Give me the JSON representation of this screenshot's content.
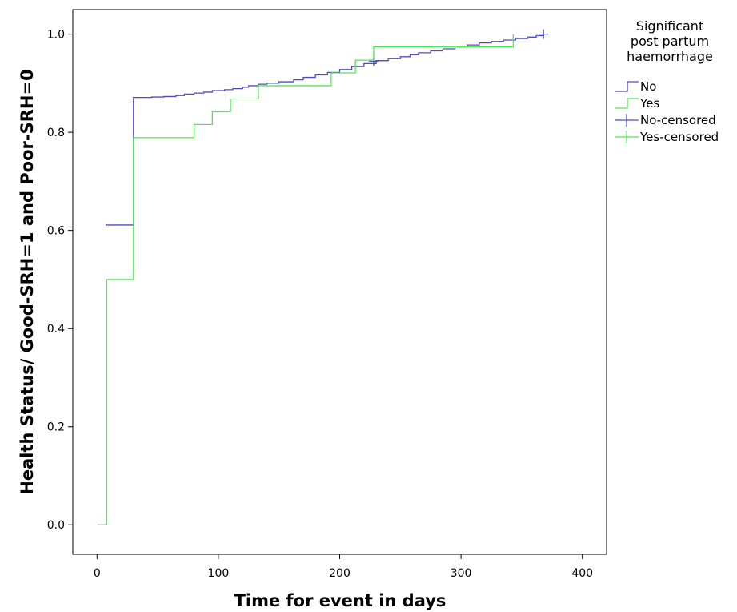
{
  "chart_data": {
    "type": "line",
    "subtype": "kaplan-meier-step",
    "title": "",
    "xlabel": "Time for event in days",
    "ylabel": "Health Status/ Good-SRH=1 and Poor-SRH=0",
    "xlim": [
      -20,
      420
    ],
    "ylim": [
      -0.06,
      1.05
    ],
    "xticks": [
      0,
      100,
      200,
      300,
      400
    ],
    "yticks": [
      0.0,
      0.2,
      0.4,
      0.6,
      0.8,
      1.0
    ],
    "xtick_labels": [
      "0",
      "100",
      "200",
      "300",
      "400"
    ],
    "ytick_labels": [
      "0.0",
      "0.2",
      "0.4",
      "0.6",
      "0.8",
      "1.0"
    ],
    "grid": false,
    "legend": {
      "title": "Significant post partum haemorrhage",
      "title_lines": [
        "Significant",
        "post partum",
        "haemorrhage"
      ],
      "placement": "right",
      "entries": [
        {
          "label": "No",
          "kind": "step",
          "color": "#4c4cc7"
        },
        {
          "label": "Yes",
          "kind": "step",
          "color": "#55e655"
        },
        {
          "label": "No-censored",
          "kind": "censor",
          "color": "#4c4cc7"
        },
        {
          "label": "Yes-censored",
          "kind": "censor",
          "color": "#55e655"
        }
      ]
    },
    "series": [
      {
        "name": "No",
        "color": "#4c4cc7",
        "x": [
          7,
          30,
          45,
          55,
          65,
          72,
          80,
          88,
          95,
          105,
          112,
          120,
          125,
          133,
          140,
          150,
          162,
          170,
          180,
          190,
          200,
          210,
          220,
          230,
          240,
          250,
          258,
          265,
          275,
          285,
          295,
          305,
          315,
          325,
          335,
          345,
          355,
          362,
          368
        ],
        "y": [
          0.611,
          0.871,
          0.872,
          0.873,
          0.875,
          0.878,
          0.88,
          0.882,
          0.885,
          0.887,
          0.889,
          0.892,
          0.895,
          0.898,
          0.9,
          0.903,
          0.907,
          0.912,
          0.917,
          0.922,
          0.928,
          0.934,
          0.94,
          0.946,
          0.95,
          0.954,
          0.958,
          0.962,
          0.966,
          0.97,
          0.974,
          0.978,
          0.982,
          0.985,
          0.988,
          0.991,
          0.994,
          0.997,
          1.0
        ],
        "censored": [
          {
            "x": 228,
            "y": 0.945
          },
          {
            "x": 368,
            "y": 1.0
          }
        ]
      },
      {
        "name": "Yes",
        "color": "#55e655",
        "x": [
          0,
          8,
          30,
          80,
          95,
          110,
          133,
          193,
          213,
          228,
          343
        ],
        "y": [
          0.0,
          0.5,
          0.789,
          0.816,
          0.842,
          0.868,
          0.895,
          0.921,
          0.947,
          0.974,
          1.0
        ],
        "censored": []
      }
    ]
  }
}
